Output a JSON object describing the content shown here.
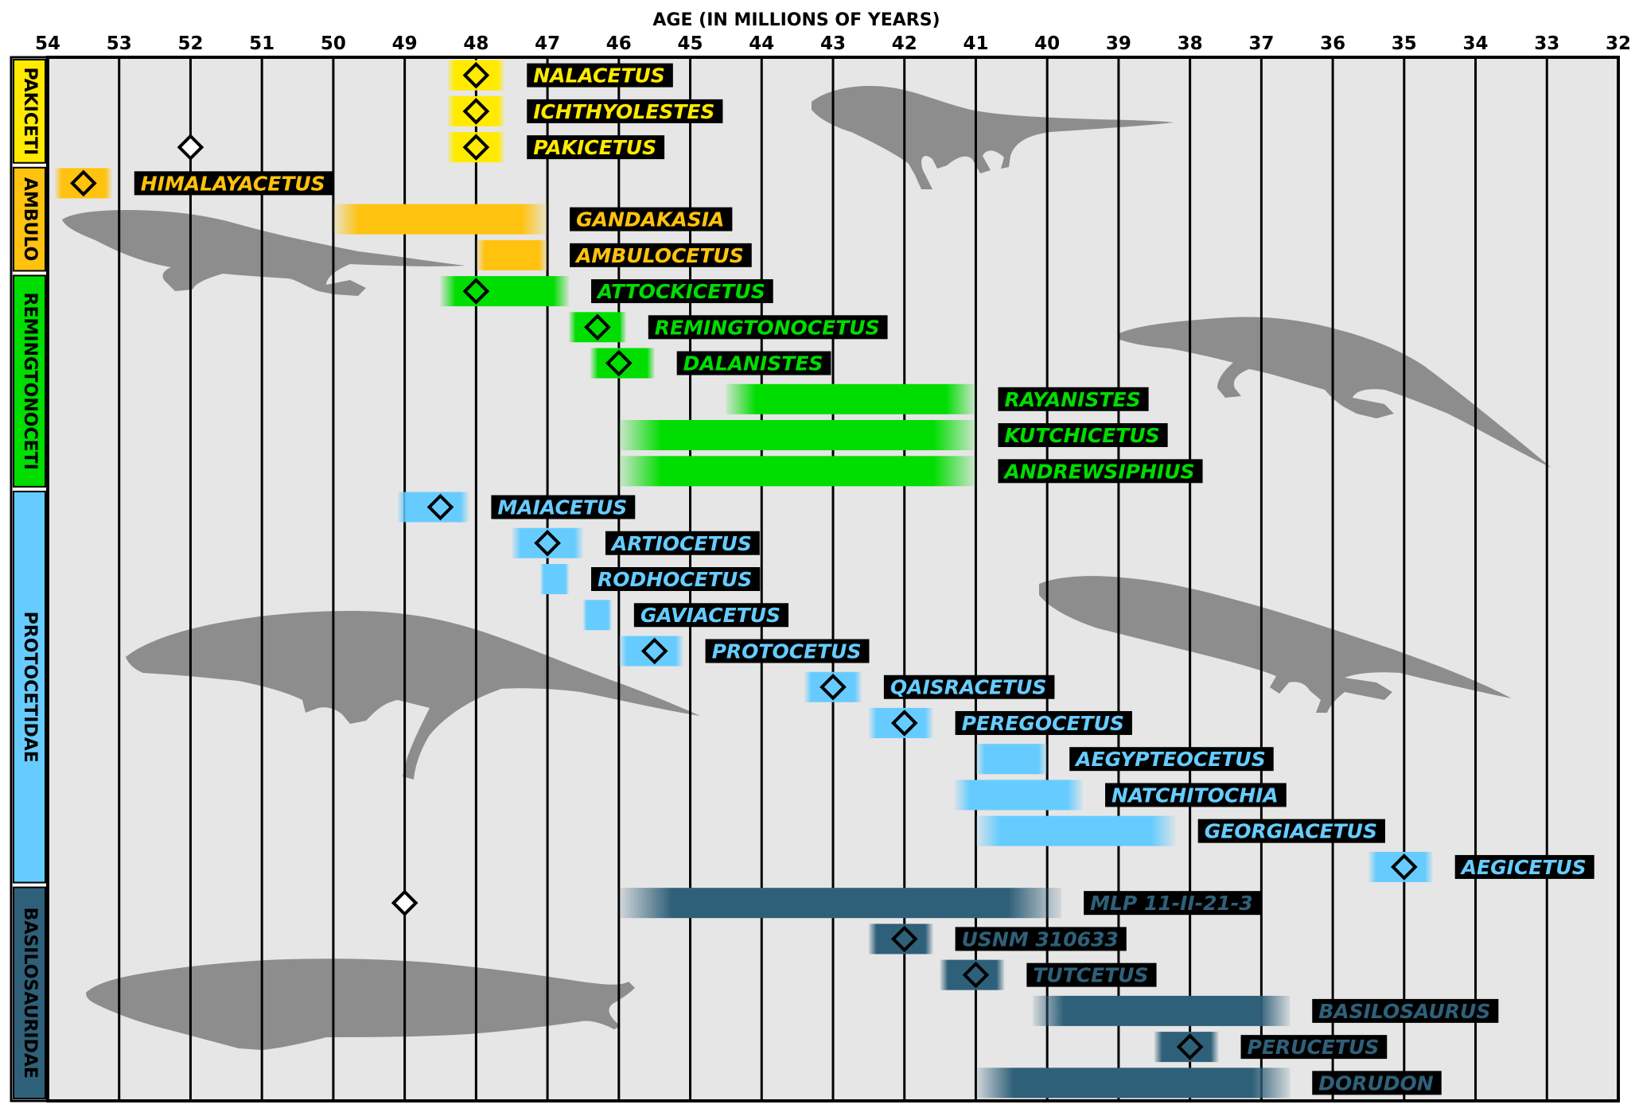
{
  "chart_data": {
    "type": "timeline",
    "title": "",
    "xlabel": "AGE (IN MILLIONS OF YEARS)",
    "ylabel": "",
    "xlim": [
      54,
      32
    ],
    "x_ticks": [
      54,
      53,
      52,
      51,
      50,
      49,
      48,
      47,
      46,
      45,
      44,
      43,
      42,
      41,
      40,
      39,
      38,
      37,
      36,
      35,
      34,
      33,
      32
    ],
    "x_reversed": true,
    "grid": true,
    "groups": [
      {
        "name": "PAKICETI",
        "color": "#ffea00",
        "text_color": "#000000"
      },
      {
        "name": "AMBULO",
        "color": "#ffc20e",
        "text_color": "#000000"
      },
      {
        "name": "REMINGTONOCETI",
        "color": "#00dd00",
        "text_color": "#000000"
      },
      {
        "name": "PROTOCETIDAE",
        "color": "#66ccff",
        "text_color": "#000000"
      },
      {
        "name": "BASILOSAURIDAE",
        "color": "#2f6079",
        "text_color": "#000000"
      }
    ],
    "taxa": [
      {
        "name": "NALACETUS",
        "group": "PAKICETI",
        "start": 48.4,
        "end": 47.6,
        "point": 48
      },
      {
        "name": "ICHTHYOLESTES",
        "group": "PAKICETI",
        "start": 48.4,
        "end": 47.6,
        "point": 48
      },
      {
        "name": "PAKICETUS",
        "group": "PAKICETI",
        "start": 48.4,
        "end": 47.6,
        "point": 48,
        "extra_point": 52
      },
      {
        "name": "HIMALAYACETUS",
        "group": "AMBULO",
        "start": 53.9,
        "end": 53.1,
        "point": 53.5
      },
      {
        "name": "GANDAKASIA",
        "group": "AMBULO",
        "start": 50,
        "end": 47
      },
      {
        "name": "AMBULOCETUS",
        "group": "AMBULO",
        "start": 48,
        "end": 47
      },
      {
        "name": "ATTOCKICETUS",
        "group": "REMINGTONOCETI",
        "start": 48.5,
        "end": 46.7,
        "point": 48
      },
      {
        "name": "REMINGTONOCETUS",
        "group": "REMINGTONOCETI",
        "start": 46.7,
        "end": 45.9,
        "point": 46.3
      },
      {
        "name": "DALANISTES",
        "group": "REMINGTONOCETI",
        "start": 46.4,
        "end": 45.5,
        "point": 46
      },
      {
        "name": "RAYANISTES",
        "group": "REMINGTONOCETI",
        "start": 44.5,
        "end": 41
      },
      {
        "name": "KUTCHICETUS",
        "group": "REMINGTONOCETI",
        "start": 46,
        "end": 41
      },
      {
        "name": "ANDREWSIPHIUS",
        "group": "REMINGTONOCETI",
        "start": 46,
        "end": 41
      },
      {
        "name": "MAIACETUS",
        "group": "PROTOCETIDAE",
        "start": 49.1,
        "end": 48.1,
        "point": 48.5
      },
      {
        "name": "ARTIOCETUS",
        "group": "PROTOCETIDAE",
        "start": 47.5,
        "end": 46.5,
        "point": 47
      },
      {
        "name": "RODHOCETUS",
        "group": "PROTOCETIDAE",
        "start": 47.1,
        "end": 46.7
      },
      {
        "name": "GAVIACETUS",
        "group": "PROTOCETIDAE",
        "start": 46.5,
        "end": 46.1
      },
      {
        "name": "PROTOCETUS",
        "group": "PROTOCETIDAE",
        "start": 46,
        "end": 45.1,
        "point": 45.5
      },
      {
        "name": "QAISRACETUS",
        "group": "PROTOCETIDAE",
        "start": 43.4,
        "end": 42.6,
        "point": 43
      },
      {
        "name": "PEREGOCETUS",
        "group": "PROTOCETIDAE",
        "start": 42.5,
        "end": 41.6,
        "point": 42
      },
      {
        "name": "AEGYPTEOCETUS",
        "group": "PROTOCETIDAE",
        "start": 41,
        "end": 40
      },
      {
        "name": "NATCHITOCHIA",
        "group": "PROTOCETIDAE",
        "start": 41.3,
        "end": 39.5
      },
      {
        "name": "GEORGIACETUS",
        "group": "PROTOCETIDAE",
        "start": 41,
        "end": 38.2
      },
      {
        "name": "AEGICETUS",
        "group": "PROTOCETIDAE",
        "start": 35.5,
        "end": 34.6,
        "point": 35
      },
      {
        "name": "MLP 11-II-21-3",
        "group": "BASILOSAURIDAE",
        "start": 46,
        "end": 39.8,
        "extra_point": 49
      },
      {
        "name": "USNM 310633",
        "group": "BASILOSAURIDAE",
        "start": 42.5,
        "end": 41.6,
        "point": 42
      },
      {
        "name": "TUTCETUS",
        "group": "BASILOSAURIDAE",
        "start": 41.5,
        "end": 40.6,
        "point": 41
      },
      {
        "name": "BASILOSAURUS",
        "group": "BASILOSAURIDAE",
        "start": 40.2,
        "end": 36.6
      },
      {
        "name": "PERUCETUS",
        "group": "BASILOSAURIDAE",
        "start": 38.5,
        "end": 37.6,
        "point": 38
      },
      {
        "name": "DORUDON",
        "group": "BASILOSAURIDAE",
        "start": 41,
        "end": 36.6
      }
    ]
  }
}
